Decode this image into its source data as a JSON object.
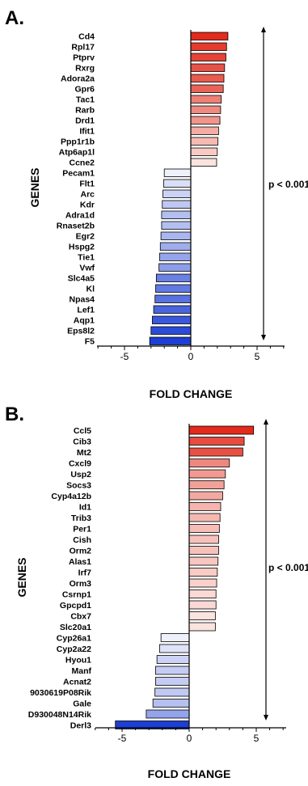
{
  "chart_data": [
    {
      "type": "bar",
      "orientation": "horizontal",
      "panel_label": "A.",
      "ylabel": "GENES",
      "xlabel": "FOLD CHANGE",
      "annotation": "p < 0.001",
      "xlim": [
        -7,
        7
      ],
      "xticks": [
        -5,
        0,
        5
      ],
      "grid": false,
      "legend": "none",
      "categories": [
        "Cd4",
        "Rpl17",
        "Ptprv",
        "Rxrg",
        "Adora2a",
        "Gpr6",
        "Tac1",
        "Rarb",
        "Drd1",
        "Ifit1",
        "Ppp1r1b",
        "Atp6ap1l",
        "Ccne2",
        "Pecam1",
        "Flt1",
        "Arc",
        "Kdr",
        "Adra1d",
        "Rnaset2b",
        "Egr2",
        "Hspg2",
        "Tie1",
        "Vwf",
        "Slc4a5",
        "Kl",
        "Npas4",
        "Lef1",
        "Aqp1",
        "Eps8l2",
        "F5"
      ],
      "values": [
        2.8,
        2.7,
        2.65,
        2.55,
        2.5,
        2.45,
        2.3,
        2.25,
        2.2,
        2.1,
        2.05,
        2.0,
        1.95,
        -2.0,
        -2.05,
        -2.1,
        -2.15,
        -2.2,
        -2.2,
        -2.25,
        -2.3,
        -2.35,
        -2.4,
        -2.6,
        -2.65,
        -2.7,
        -2.8,
        -2.9,
        -3.0,
        -3.1
      ]
    },
    {
      "type": "bar",
      "orientation": "horizontal",
      "panel_label": "B.",
      "ylabel": "GENES",
      "xlabel": "FOLD CHANGE",
      "annotation": "p < 0.001",
      "xlim": [
        -7,
        7
      ],
      "xticks": [
        -5,
        0,
        5
      ],
      "grid": false,
      "legend": "none",
      "categories": [
        "Ccl5",
        "Cib3",
        "Mt2",
        "Cxcl9",
        "Usp2",
        "Socs3",
        "Cyp4a12b",
        "Id1",
        "Trib3",
        "Per1",
        "Cish",
        "Orm2",
        "Alas1",
        "Irf7",
        "Orm3",
        "Csrnp1",
        "Gpcpd1",
        "Cbx7",
        "Slc20a1",
        "Cyp26a1",
        "Cyp2a22",
        "Hyou1",
        "Manf",
        "Acnat2",
        "9030619P08Rik",
        "Gale",
        "D930048N14Rik",
        "Derl3"
      ],
      "values": [
        4.8,
        4.1,
        4.0,
        3.0,
        2.7,
        2.6,
        2.5,
        2.35,
        2.3,
        2.25,
        2.2,
        2.2,
        2.15,
        2.1,
        2.05,
        2.0,
        2.0,
        1.95,
        1.95,
        -2.1,
        -2.2,
        -2.4,
        -2.5,
        -2.5,
        -2.55,
        -2.7,
        -3.2,
        -5.5
      ]
    }
  ],
  "colors": {
    "positive_strong": "#e32a1c",
    "positive_light": "#fbe3de",
    "negative_light": "#eef0fb",
    "negative_strong": "#1d3fd6",
    "axis": "#000000"
  }
}
